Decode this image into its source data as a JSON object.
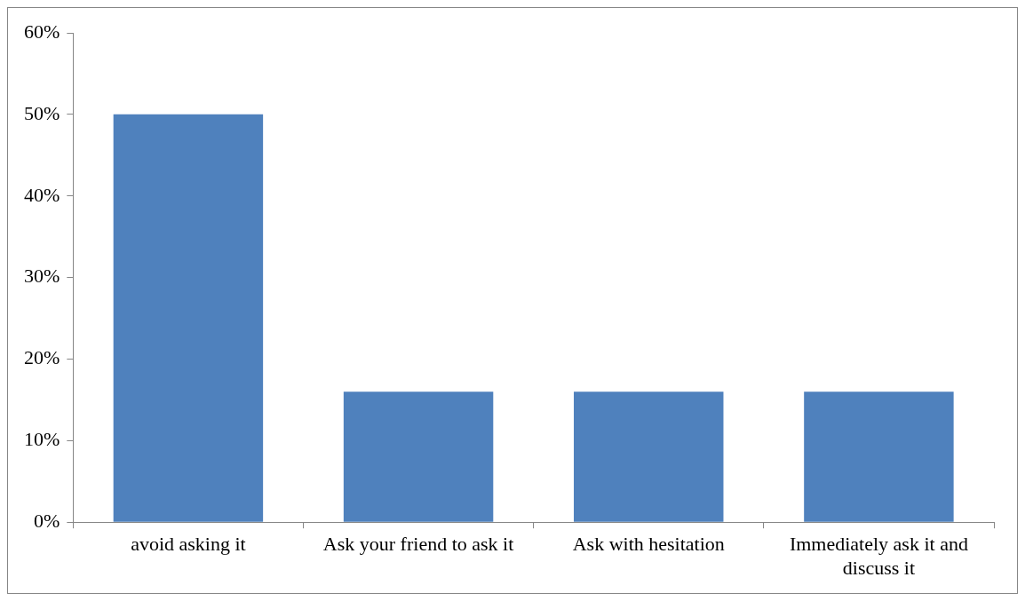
{
  "chart_data": {
    "type": "bar",
    "categories": [
      "avoid asking it",
      "Ask your friend to ask it",
      "Ask with hesitation",
      "Immediately ask it and discuss it"
    ],
    "values": [
      50,
      16,
      16,
      16
    ],
    "color": "#4f81bd",
    "ylim": [
      0,
      60
    ],
    "yticks": [
      {
        "value": 0,
        "label": "0%"
      },
      {
        "value": 10,
        "label": "10%"
      },
      {
        "value": 20,
        "label": "20%"
      },
      {
        "value": 30,
        "label": "30%"
      },
      {
        "value": 40,
        "label": "40%"
      },
      {
        "value": 50,
        "label": "50%"
      },
      {
        "value": 60,
        "label": "60%"
      }
    ],
    "grid": false,
    "legend": false
  }
}
